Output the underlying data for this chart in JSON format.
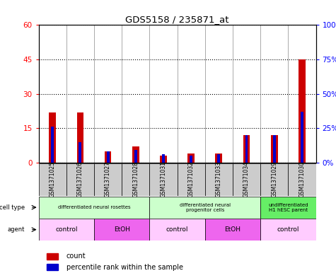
{
  "title": "GDS5158 / 235871_at",
  "samples": [
    "GSM1371025",
    "GSM1371026",
    "GSM1371027",
    "GSM1371028",
    "GSM1371031",
    "GSM1371032",
    "GSM1371033",
    "GSM1371034",
    "GSM1371029",
    "GSM1371030"
  ],
  "counts": [
    22,
    22,
    5,
    7,
    3,
    4,
    4,
    12,
    12,
    45
  ],
  "percentiles": [
    26,
    15,
    8,
    9,
    6,
    5,
    6,
    20,
    20,
    37
  ],
  "ylim_left": [
    0,
    60
  ],
  "ylim_right": [
    0,
    100
  ],
  "yticks_left": [
    0,
    15,
    30,
    45,
    60
  ],
  "yticks_right": [
    0,
    25,
    50,
    75,
    100
  ],
  "ytick_labels_left": [
    "0",
    "15",
    "30",
    "45",
    "60"
  ],
  "ytick_labels_right": [
    "0%",
    "25%",
    "50%",
    "75%",
    "100%"
  ],
  "cell_type_groups": [
    {
      "label": "differentiated neural rosettes",
      "start": 0,
      "end": 4,
      "color": "#ccffcc"
    },
    {
      "label": "differentiated neural\nprogenitor cells",
      "start": 4,
      "end": 8,
      "color": "#ccffcc"
    },
    {
      "label": "undifferentiated\nH1 hESC parent",
      "start": 8,
      "end": 10,
      "color": "#66ee66"
    }
  ],
  "agent_groups": [
    {
      "label": "control",
      "start": 0,
      "end": 2,
      "color": "#ffccff"
    },
    {
      "label": "EtOH",
      "start": 2,
      "end": 4,
      "color": "#ee66ee"
    },
    {
      "label": "control",
      "start": 4,
      "end": 6,
      "color": "#ffccff"
    },
    {
      "label": "EtOH",
      "start": 6,
      "end": 8,
      "color": "#ee66ee"
    },
    {
      "label": "control",
      "start": 8,
      "end": 10,
      "color": "#ffccff"
    }
  ],
  "bar_color_count": "#cc0000",
  "bar_color_percentile": "#0000cc",
  "bg_color": "white",
  "sample_bg_color": "#cccccc",
  "col_sep_color": "#888888"
}
